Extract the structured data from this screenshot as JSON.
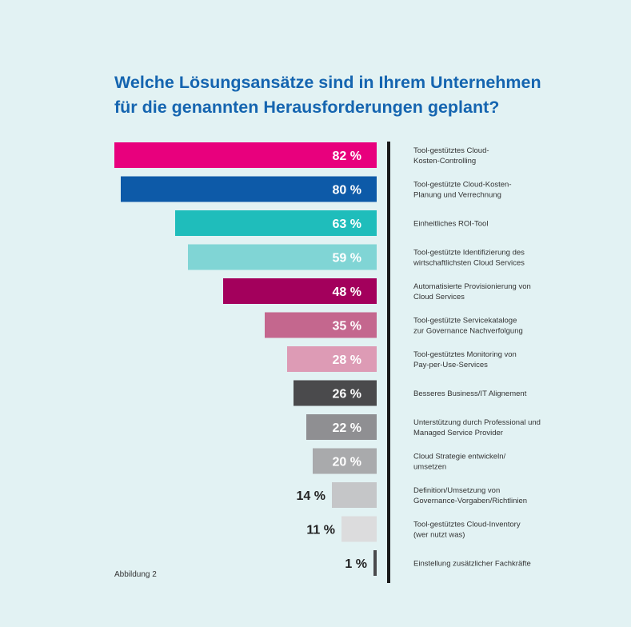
{
  "title": {
    "line1": "Welche Lösungsansätze sind in Ihrem Unternehmen",
    "line2": "für die genannten Herausforderungen geplant?"
  },
  "caption": "Abbildung 2",
  "chart_data": {
    "type": "bar",
    "orientation": "horizontal",
    "title": "Welche Lösungsansätze sind in Ihrem Unternehmen für die genannten Herausforderungen geplant?",
    "unit": "%",
    "xlim": [
      0,
      100
    ],
    "bars": [
      {
        "label": [
          "Tool-gestütztes Cloud-",
          "Kosten-Controlling"
        ],
        "value": 82,
        "value_label": "82 %",
        "color": "#e8007d"
      },
      {
        "label": [
          "Tool-gestützte Cloud-Kosten-",
          "Planung und Verrechnung"
        ],
        "value": 80,
        "value_label": "80 %",
        "color": "#0d5aa8"
      },
      {
        "label": [
          "Einheitliches ROI-Tool"
        ],
        "value": 63,
        "value_label": "63 %",
        "color": "#1fbdbb"
      },
      {
        "label": [
          "Tool-gestützte Identifizierung des",
          "wirtschaftlichsten Cloud Services"
        ],
        "value": 59,
        "value_label": "59 %",
        "color": "#80d5d5"
      },
      {
        "label": [
          "Automatisierte Provisionierung von",
          "Cloud Services"
        ],
        "value": 48,
        "value_label": "48 %",
        "color": "#a3005c"
      },
      {
        "label": [
          "Tool-gestützte Servicekataloge",
          "zur Governance Nachverfolgung"
        ],
        "value": 35,
        "value_label": "35 %",
        "color": "#c4678e"
      },
      {
        "label": [
          "Tool-gestütztes Monitoring von",
          "Pay-per-Use-Services"
        ],
        "value": 28,
        "value_label": "28 %",
        "color": "#dd9bb5"
      },
      {
        "label": [
          "Besseres Business/IT Alignement"
        ],
        "value": 26,
        "value_label": "26 %",
        "color": "#4a4a4c"
      },
      {
        "label": [
          "Unterstützung durch Professional und",
          "Managed Service Provider"
        ],
        "value": 22,
        "value_label": "22 %",
        "color": "#8f8f92"
      },
      {
        "label": [
          "Cloud Strategie entwickeln/",
          "umsetzen"
        ],
        "value": 20,
        "value_label": "20 %",
        "color": "#a9aaac"
      },
      {
        "label": [
          "Definition/Umsetzung von",
          "Governance-Vorgaben/Richtlinien"
        ],
        "value": 14,
        "value_label": "14 %",
        "color": "#c5c6c8"
      },
      {
        "label": [
          "Tool-gestütztes Cloud-Inventory",
          "(wer nutzt was)"
        ],
        "value": 11,
        "value_label": "11 %",
        "color": "#dcdcdd"
      },
      {
        "label": [
          "Einstellung zusätzlicher Fachkräfte"
        ],
        "value": 1,
        "value_label": "1 %",
        "color": "#4a4a4c"
      }
    ],
    "colors": {
      "inner_label": "#ffffff",
      "outer_label": "#222222",
      "label_text": "#333333",
      "divider": "#1a1a1a"
    }
  }
}
